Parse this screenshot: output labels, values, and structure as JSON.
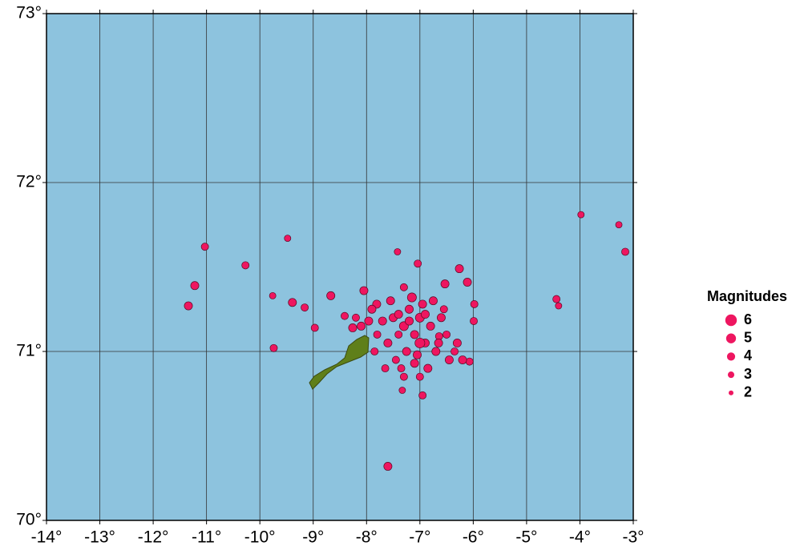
{
  "chart_data": {
    "type": "scatter",
    "xlim": [
      -14,
      -3
    ],
    "ylim": [
      70,
      73
    ],
    "xticks": [
      {
        "value": -14,
        "label": "-14°"
      },
      {
        "value": -13,
        "label": "-13°"
      },
      {
        "value": -12,
        "label": "-12°"
      },
      {
        "value": -11,
        "label": "-11°"
      },
      {
        "value": -10,
        "label": "-10°"
      },
      {
        "value": -9,
        "label": "-9°"
      },
      {
        "value": -8,
        "label": "-8°"
      },
      {
        "value": -7,
        "label": "-7°"
      },
      {
        "value": -6,
        "label": "-6°"
      },
      {
        "value": -5,
        "label": "-5°"
      },
      {
        "value": -4,
        "label": "-4°"
      },
      {
        "value": -3,
        "label": "-3°"
      }
    ],
    "yticks": [
      {
        "value": 70,
        "label": "70°"
      },
      {
        "value": 71,
        "label": "71°"
      },
      {
        "value": 72,
        "label": "72°"
      },
      {
        "value": 73,
        "label": "73°"
      }
    ],
    "grid": true,
    "color": "#ee1660",
    "legend": {
      "title": "Magnitudes",
      "sizes": [
        6,
        5,
        4,
        3,
        2
      ]
    },
    "x": [
      -11.03,
      -11.22,
      -11.34,
      -10.27,
      -9.48,
      -9.76,
      -9.74,
      -7.42,
      -7.04,
      -6.26,
      -7.6,
      -6.95,
      -3.98,
      -3.27,
      -3.15,
      -4.44,
      -4.4,
      -6.07,
      -5.98,
      -6.11,
      -6.53,
      -8.67,
      -8.05,
      -7.81,
      -8.26,
      -9.16,
      -8.97,
      -7.3,
      -7.33,
      -6.35,
      -6.64,
      -5.99,
      -9.39,
      -8.41,
      -7.96,
      -7.5,
      -7.3,
      -7.1,
      -7.0,
      -6.9,
      -7.2,
      -7.4,
      -7.6,
      -6.8,
      -7.05,
      -6.95,
      -7.25,
      -7.45,
      -6.7,
      -6.6,
      -7.7,
      -7.8,
      -7.15,
      -6.85,
      -7.35,
      -6.5,
      -6.45,
      -7.55,
      -6.75,
      -7.9,
      -7.0,
      -7.2,
      -6.9,
      -7.4,
      -6.65,
      -7.1,
      -7.65,
      -6.55,
      -7.3,
      -6.3,
      -7.85,
      -8.1,
      -8.2,
      -7.0,
      -6.2
    ],
    "values": [
      71.62,
      71.39,
      71.27,
      71.51,
      71.67,
      71.33,
      71.02,
      71.59,
      71.52,
      71.49,
      70.32,
      70.74,
      71.81,
      71.75,
      71.59,
      71.31,
      71.27,
      70.94,
      71.28,
      71.41,
      71.4,
      71.33,
      71.36,
      71.28,
      71.14,
      71.26,
      71.14,
      70.85,
      70.77,
      71.0,
      71.09,
      71.18,
      71.29,
      71.21,
      71.18,
      71.2,
      71.15,
      71.1,
      71.2,
      71.05,
      71.25,
      71.1,
      71.05,
      71.15,
      70.98,
      71.28,
      71.0,
      70.95,
      71.0,
      71.2,
      71.18,
      71.1,
      71.32,
      70.9,
      70.9,
      71.1,
      70.95,
      71.3,
      71.3,
      71.25,
      71.05,
      71.18,
      71.22,
      71.22,
      71.05,
      70.93,
      70.9,
      71.25,
      71.38,
      71.05,
      71.0,
      71.15,
      71.2,
      70.85,
      70.95
    ],
    "sizes": [
      3.5,
      4,
      4,
      3.5,
      3,
      3,
      3.5,
      3,
      3.5,
      4,
      4,
      3.5,
      3,
      3,
      3.5,
      3.5,
      3,
      3.5,
      3.5,
      4,
      4,
      4,
      4,
      4,
      4,
      3.5,
      3.5,
      3.5,
      3,
      3.5,
      3.5,
      3.5,
      4,
      3.5,
      4,
      4,
      4.5,
      4,
      4.5,
      4,
      4,
      3.5,
      4,
      4,
      4,
      4,
      4,
      3.5,
      4,
      4,
      4,
      3.5,
      4.5,
      4,
      3.5,
      3.5,
      4,
      4,
      4,
      4,
      5,
      4,
      4,
      4,
      4,
      4,
      3.5,
      3.5,
      3.5,
      4,
      3.5,
      4,
      3.5,
      3.5,
      4
    ]
  }
}
